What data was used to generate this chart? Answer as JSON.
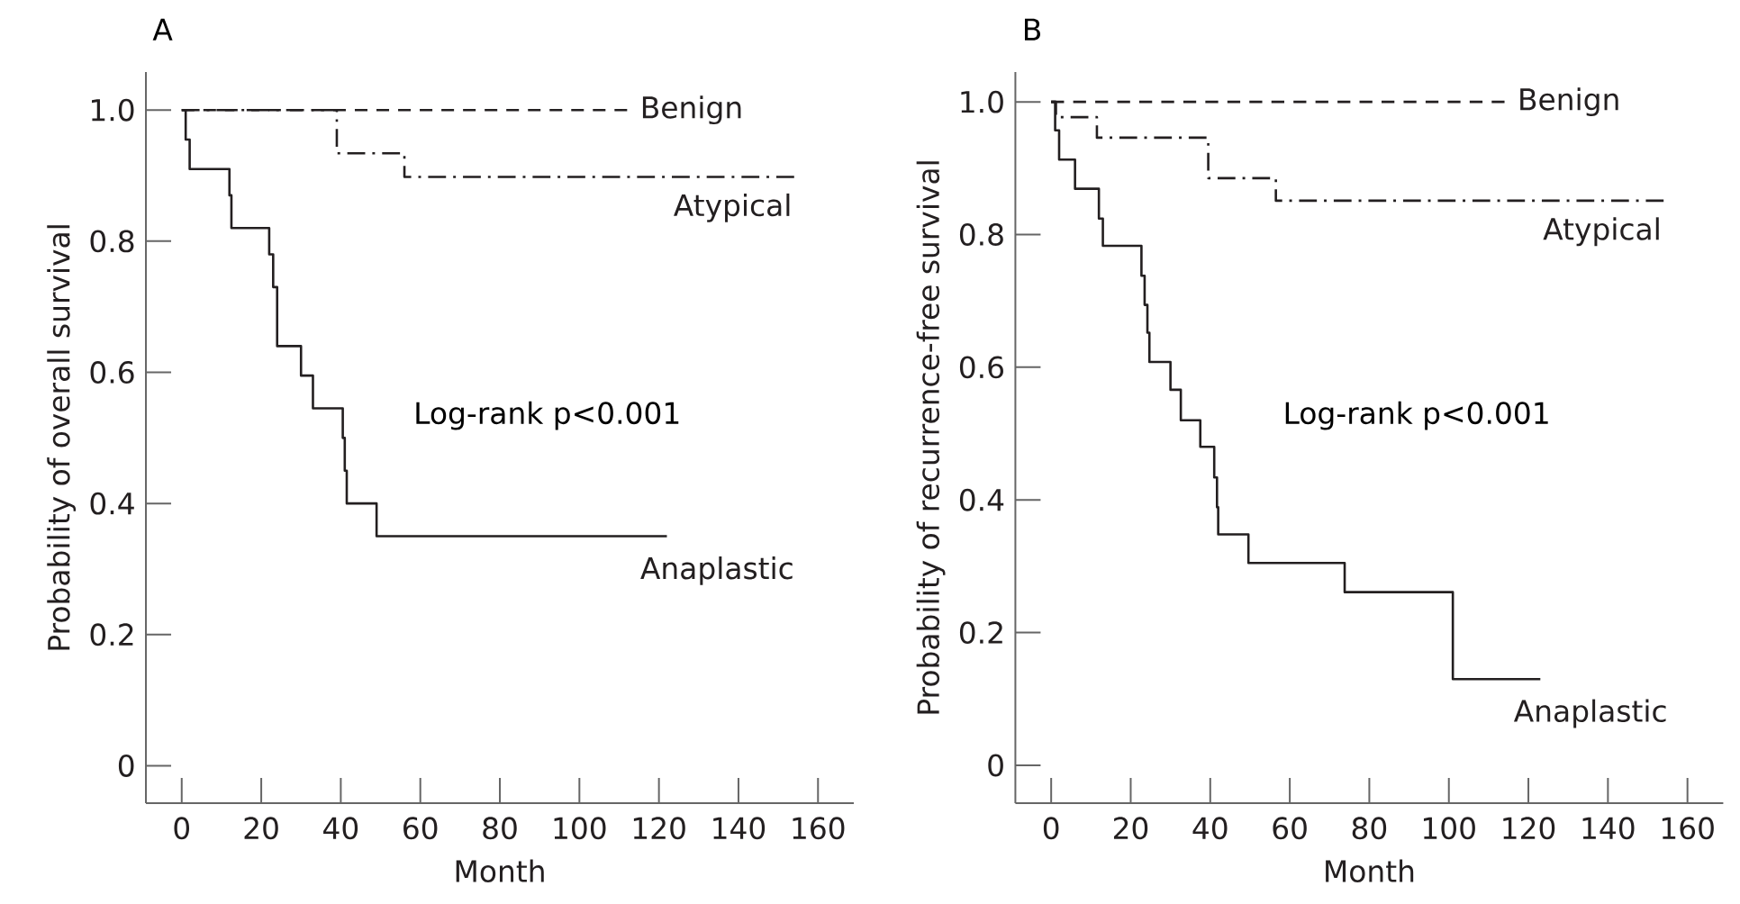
{
  "chart_data": [
    {
      "type": "step",
      "title": "A",
      "xlabel": "Month",
      "ylabel": "Probability of overall survival",
      "xlim": [
        -9,
        169
      ],
      "ylim": [
        -0.057,
        1.058
      ],
      "xticks": [
        0,
        20,
        40,
        60,
        80,
        100,
        120,
        140,
        160
      ],
      "yticks": [
        0,
        0.2,
        0.4,
        0.6,
        0.8,
        {
          "value": 1,
          "label": "1.0"
        }
      ],
      "legend": false,
      "grid": false,
      "annotations": [
        "Log-rank  p<0.001"
      ],
      "series": [
        {
          "name": "Benign",
          "color": "#231f20",
          "line_style": "dashed",
          "x": [
            0,
            112
          ],
          "values": [
            1,
            1
          ]
        },
        {
          "name": "Atypical",
          "color": "#231f20",
          "line_style": "dashdot",
          "x": [
            0,
            39,
            56,
            154
          ],
          "values": [
            1,
            0.934,
            0.898,
            0.898
          ]
        },
        {
          "name": "Anaplastic",
          "color": "#231f20",
          "line_style": "solid",
          "x": [
            0,
            1,
            2,
            12,
            12.5,
            22,
            23,
            24,
            30,
            33,
            40.5,
            41,
            41.5,
            49,
            122
          ],
          "values": [
            1,
            0.955,
            0.91,
            0.87,
            0.82,
            0.78,
            0.73,
            0.64,
            0.595,
            0.545,
            0.5,
            0.45,
            0.4,
            0.35,
            0.35
          ]
        }
      ]
    },
    {
      "type": "step",
      "title": "B",
      "xlabel": "Month",
      "ylabel": "Probability of recurrence-free survival",
      "xlim": [
        -9,
        169
      ],
      "ylim": [
        -0.057,
        1.045
      ],
      "xticks": [
        0,
        20,
        40,
        60,
        80,
        100,
        120,
        140,
        160
      ],
      "yticks": [
        0,
        0.2,
        0.4,
        0.6,
        0.8,
        {
          "value": 1,
          "label": "1.0"
        }
      ],
      "legend": false,
      "grid": false,
      "annotations": [
        "Log-rank  p<0.001"
      ],
      "series": [
        {
          "name": "Benign",
          "color": "#231f20",
          "line_style": "dashed",
          "x": [
            0,
            114
          ],
          "values": [
            1,
            1
          ]
        },
        {
          "name": "Atypical",
          "color": "#231f20",
          "line_style": "dashdot",
          "x": [
            0,
            1.2,
            11.5,
            39.5,
            56.5,
            154
          ],
          "values": [
            1,
            0.977,
            0.946,
            0.885,
            0.851,
            0.851
          ]
        },
        {
          "name": "Anaplastic",
          "color": "#231f20",
          "line_style": "solid",
          "x": [
            0,
            1,
            2,
            6,
            12,
            13,
            22.7,
            23.5,
            24.2,
            24.7,
            30,
            32.6,
            37.5,
            41,
            41.7,
            42,
            49.6,
            73.8,
            101,
            123
          ],
          "values": [
            1,
            0.957,
            0.913,
            0.869,
            0.824,
            0.783,
            0.738,
            0.694,
            0.652,
            0.608,
            0.566,
            0.52,
            0.48,
            0.434,
            0.389,
            0.348,
            0.305,
            0.261,
            0.13,
            0.13
          ]
        }
      ]
    }
  ]
}
